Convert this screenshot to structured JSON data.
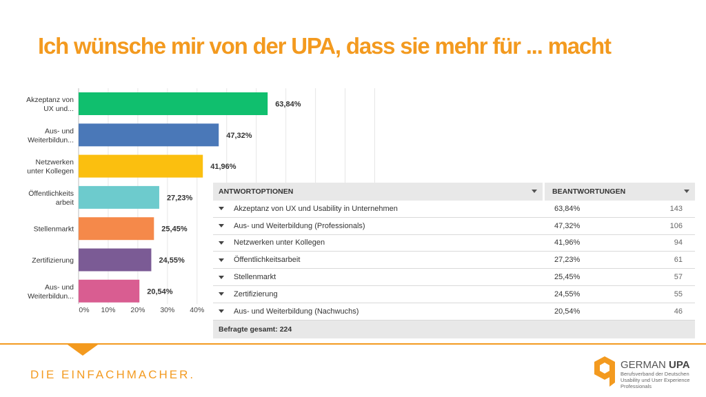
{
  "title": "Ich wünsche mir von der UPA, dass sie mehr für ... macht",
  "chart_data": {
    "type": "bar",
    "orientation": "horizontal",
    "categories": [
      [
        "Akzeptanz von",
        "UX und..."
      ],
      [
        "Aus- und",
        "Weiterbildun..."
      ],
      [
        "Netzwerken",
        "unter Kollegen"
      ],
      [
        "Öffentlichkeits",
        "arbeit"
      ],
      [
        "Stellenmarkt"
      ],
      [
        "Zertifizierung"
      ],
      [
        "Aus- und",
        "Weiterbildun..."
      ]
    ],
    "values": [
      63.84,
      47.32,
      41.96,
      27.23,
      25.45,
      24.55,
      20.54
    ],
    "value_labels": [
      "63,84%",
      "47,32%",
      "41,96%",
      "27,23%",
      "25,45%",
      "24,55%",
      "20,54%"
    ],
    "colors": [
      "#10bf6e",
      "#4a78b8",
      "#fbbf0f",
      "#6dcbcd",
      "#f5894a",
      "#7b5b95",
      "#d95d91"
    ],
    "xticks": [
      "0%",
      "10%",
      "20%",
      "30%",
      "40%"
    ],
    "xlim": [
      0,
      100
    ],
    "grid": true
  },
  "table": {
    "col1_header": "ANTWORTOPTIONEN",
    "col2_header": "BEANTWORTUNGEN",
    "rows": [
      {
        "option": "Akzeptanz von UX und Usability in Unternehmen",
        "percent": "63,84%",
        "count": "143"
      },
      {
        "option": "Aus- und Weiterbildung (Professionals)",
        "percent": "47,32%",
        "count": "106"
      },
      {
        "option": "Netzwerken unter Kollegen",
        "percent": "41,96%",
        "count": "94"
      },
      {
        "option": "Öffentlichkeitsarbeit",
        "percent": "27,23%",
        "count": "61"
      },
      {
        "option": "Stellenmarkt",
        "percent": "25,45%",
        "count": "57"
      },
      {
        "option": "Zertifizierung",
        "percent": "24,55%",
        "count": "55"
      },
      {
        "option": "Aus- und Weiterbildung (Nachwuchs)",
        "percent": "20,54%",
        "count": "46"
      }
    ],
    "footer": "Befragte gesamt: 224"
  },
  "footer": {
    "tagline": "DIE EINFACHMACHER."
  },
  "logo": {
    "name_light": "GERMAN ",
    "name_bold": "UPA",
    "subtitle": "Berufsverband der Deutschen Usability und User Experience Professionals",
    "color": "#f39a1f",
    "icon": "hexagon-logo-icon"
  }
}
